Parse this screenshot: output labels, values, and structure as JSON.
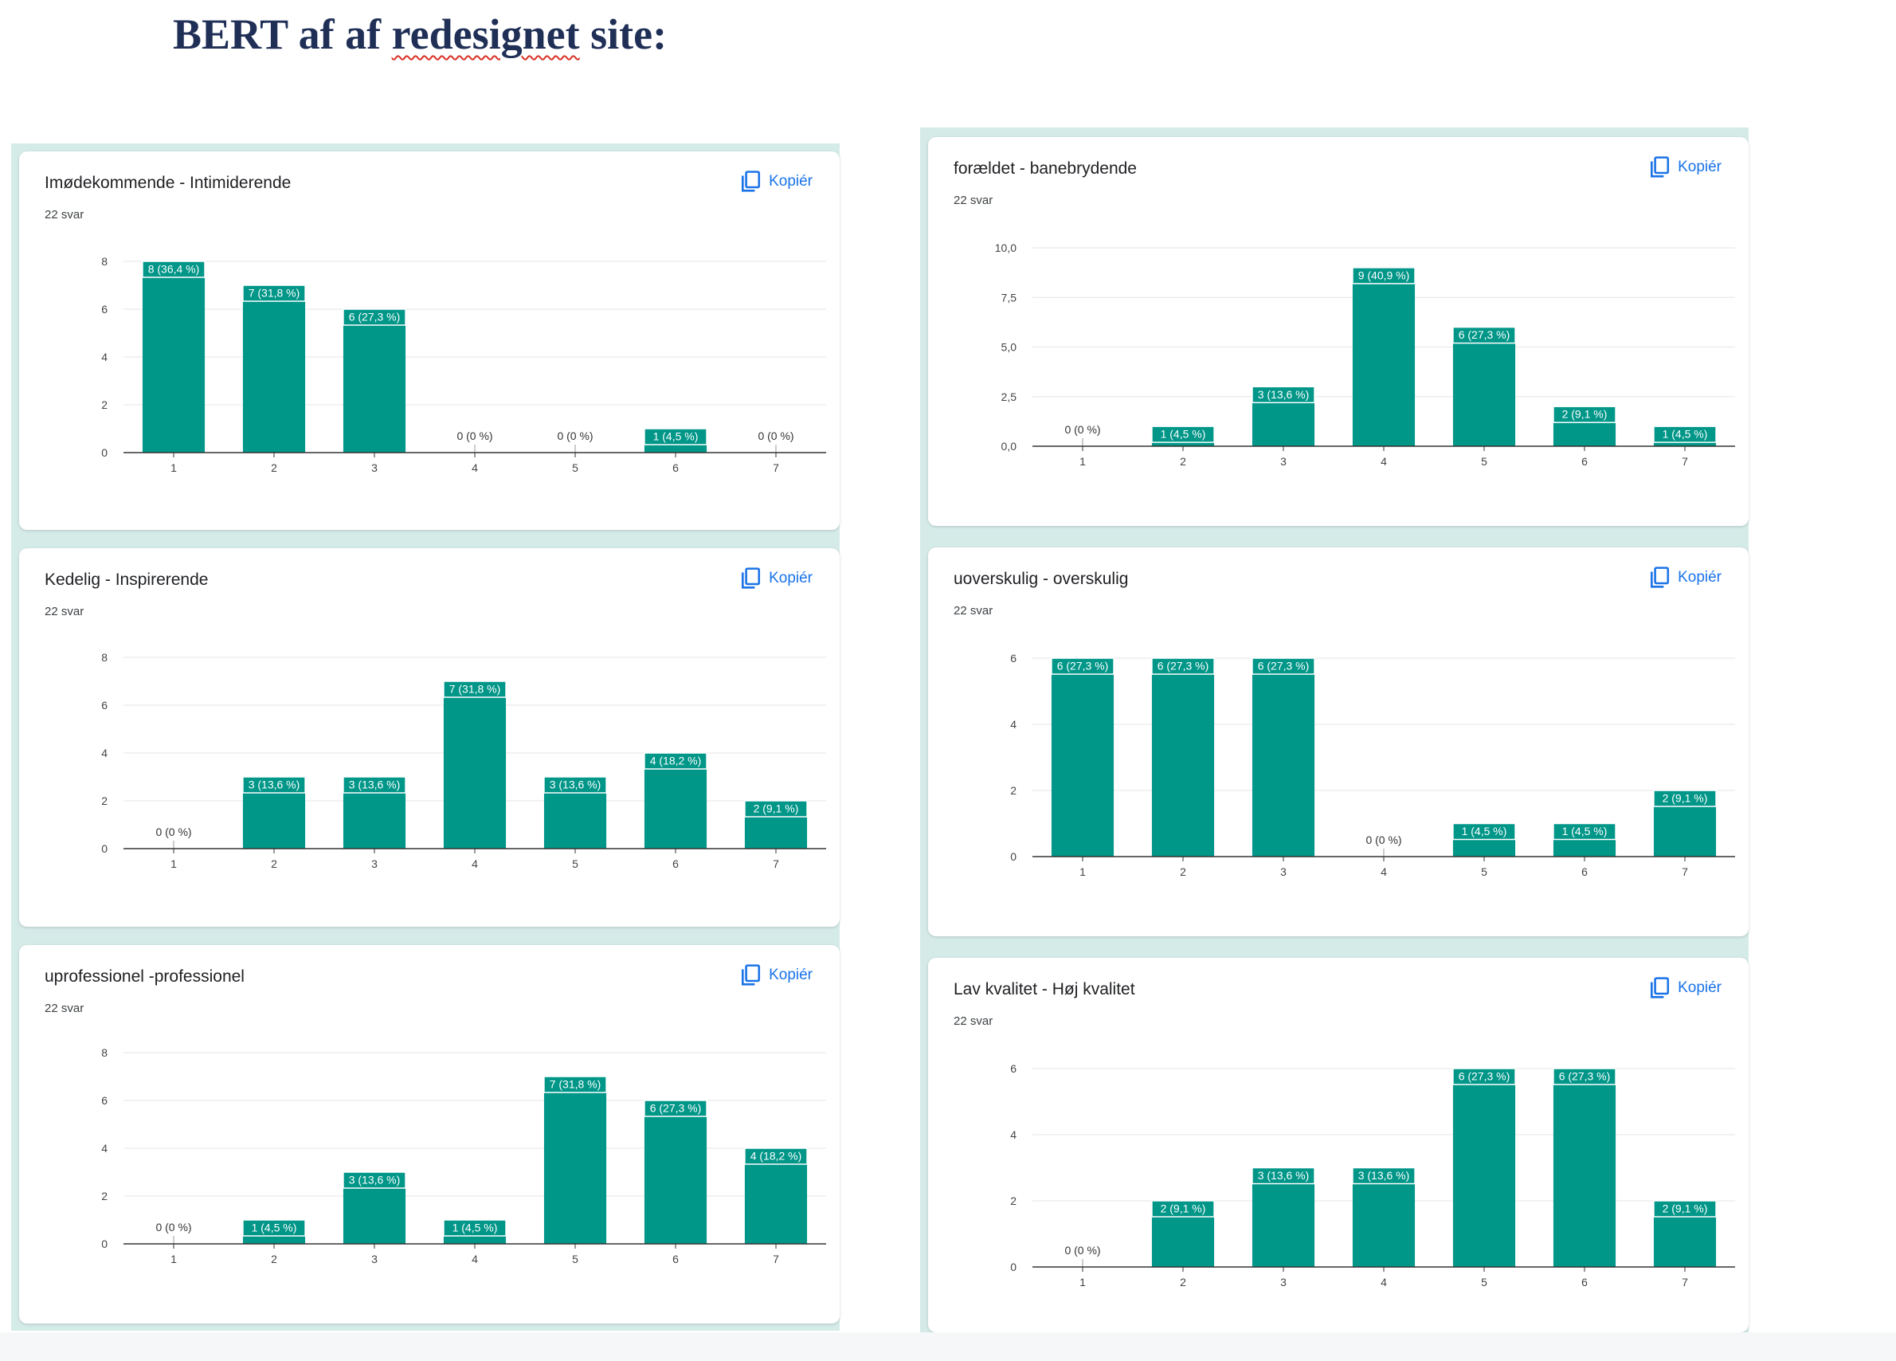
{
  "page": {
    "title_plain": "BERT af af",
    "title_underlined": "redesignet",
    "title_end": "site:"
  },
  "colors": {
    "bar": "#009688",
    "label_bg": "#009688",
    "grid": "#e5e5e5",
    "axis": "#333333",
    "tick_text": "#444444",
    "accent": "#1a73e8"
  },
  "ui": {
    "copy_icon": "copy-icon"
  },
  "charts": [
    {
      "id": "chart-1",
      "title": "Imødekommende - Intimiderende",
      "count": "22 svar",
      "copy_label": "Kopiér",
      "chart_data": {
        "type": "bar",
        "categories": [
          "1",
          "2",
          "3",
          "4",
          "5",
          "6",
          "7"
        ],
        "values": [
          8,
          7,
          6,
          0,
          0,
          1,
          0
        ],
        "data_labels": [
          "8 (36,4 %)",
          "7 (31,8 %)",
          "6 (27,3 %)",
          "0 (0 %)",
          "0 (0 %)",
          "1 (4,5 %)",
          "0 (0 %)"
        ],
        "yticks": [
          0,
          2,
          4,
          6,
          8
        ],
        "ytick_labels": [
          "0",
          "2",
          "4",
          "6",
          "8"
        ],
        "ylim": [
          0,
          8
        ]
      }
    },
    {
      "id": "chart-2",
      "title": "forældet - banebrydende",
      "count": "22 svar",
      "copy_label": "Kopiér",
      "chart_data": {
        "type": "bar",
        "categories": [
          "1",
          "2",
          "3",
          "4",
          "5",
          "6",
          "7"
        ],
        "values": [
          0,
          1,
          3,
          9,
          6,
          2,
          1
        ],
        "data_labels": [
          "0 (0 %)",
          "1 (4,5 %)",
          "3 (13,6 %)",
          "9 (40,9 %)",
          "6 (27,3 %)",
          "2 (9,1 %)",
          "1 (4,5 %)"
        ],
        "yticks": [
          0,
          2.5,
          5,
          7.5,
          10
        ],
        "ytick_labels": [
          "0,0",
          "2,5",
          "5,0",
          "7,5",
          "10,0"
        ],
        "ylim": [
          0,
          10
        ]
      }
    },
    {
      "id": "chart-3",
      "title": "Kedelig - Inspirerende",
      "count": "22 svar",
      "copy_label": "Kopiér",
      "chart_data": {
        "type": "bar",
        "categories": [
          "1",
          "2",
          "3",
          "4",
          "5",
          "6",
          "7"
        ],
        "values": [
          0,
          3,
          3,
          7,
          3,
          4,
          2
        ],
        "data_labels": [
          "0 (0 %)",
          "3 (13,6 %)",
          "3 (13,6 %)",
          "7 (31,8 %)",
          "3 (13,6 %)",
          "4 (18,2 %)",
          "2 (9,1 %)"
        ],
        "yticks": [
          0,
          2,
          4,
          6,
          8
        ],
        "ytick_labels": [
          "0",
          "2",
          "4",
          "6",
          "8"
        ],
        "ylim": [
          0,
          8
        ]
      }
    },
    {
      "id": "chart-4",
      "title": "uoverskulig - overskulig",
      "count": "22 svar",
      "copy_label": "Kopiér",
      "chart_data": {
        "type": "bar",
        "categories": [
          "1",
          "2",
          "3",
          "4",
          "5",
          "6",
          "7"
        ],
        "values": [
          6,
          6,
          6,
          0,
          1,
          1,
          2
        ],
        "data_labels": [
          "6 (27,3 %)",
          "6 (27,3 %)",
          "6 (27,3 %)",
          "0 (0 %)",
          "1 (4,5 %)",
          "1 (4,5 %)",
          "2 (9,1 %)"
        ],
        "yticks": [
          0,
          2,
          4,
          6
        ],
        "ytick_labels": [
          "0",
          "2",
          "4",
          "6"
        ],
        "ylim": [
          0,
          6
        ]
      }
    },
    {
      "id": "chart-5",
      "title": "uprofessionel -professionel",
      "count": "22 svar",
      "copy_label": "Kopiér",
      "chart_data": {
        "type": "bar",
        "categories": [
          "1",
          "2",
          "3",
          "4",
          "5",
          "6",
          "7"
        ],
        "values": [
          0,
          1,
          3,
          1,
          7,
          6,
          4
        ],
        "data_labels": [
          "0 (0 %)",
          "1 (4,5 %)",
          "3 (13,6 %)",
          "1 (4,5 %)",
          "7 (31,8 %)",
          "6 (27,3 %)",
          "4 (18,2 %)"
        ],
        "yticks": [
          0,
          2,
          4,
          6,
          8
        ],
        "ytick_labels": [
          "0",
          "2",
          "4",
          "6",
          "8"
        ],
        "ylim": [
          0,
          8
        ]
      }
    },
    {
      "id": "chart-6",
      "title": "Lav kvalitet - Høj kvalitet",
      "count": "22 svar",
      "copy_label": "Kopiér",
      "chart_data": {
        "type": "bar",
        "categories": [
          "1",
          "2",
          "3",
          "4",
          "5",
          "6",
          "7"
        ],
        "values": [
          0,
          2,
          3,
          3,
          6,
          6,
          2
        ],
        "data_labels": [
          "0 (0 %)",
          "2 (9,1 %)",
          "3 (13,6 %)",
          "3 (13,6 %)",
          "6 (27,3 %)",
          "6 (27,3 %)",
          "2 (9,1 %)"
        ],
        "yticks": [
          0,
          2,
          4,
          6
        ],
        "ytick_labels": [
          "0",
          "2",
          "4",
          "6"
        ],
        "ylim": [
          0,
          6
        ]
      }
    }
  ]
}
